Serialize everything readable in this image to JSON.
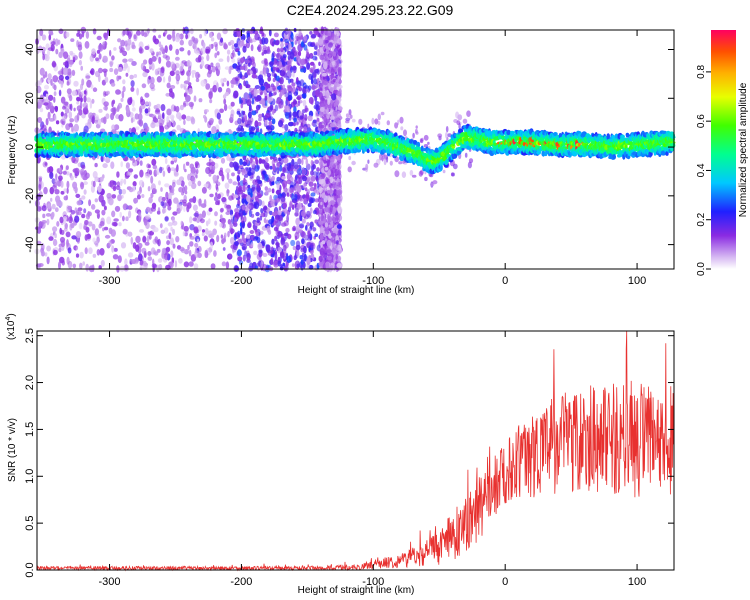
{
  "figure": {
    "title": "C2E4.2024.295.23.22.G09"
  },
  "chart_data": [
    {
      "type": "heatmap",
      "title": "C2E4.2024.295.23.22.G09",
      "xlabel": "Height of straight line (km)",
      "ylabel": "Frequency (Hz)",
      "xlim": [
        -355,
        128
      ],
      "ylim": [
        -50,
        48
      ],
      "x_ticks": [
        -300,
        -200,
        -100,
        0,
        100
      ],
      "y_ticks": [
        -40,
        -20,
        0,
        20,
        40
      ],
      "colorbar": {
        "label": "Normalized spectral amplitude",
        "range": [
          0,
          0.97
        ],
        "ticks": [
          0.0,
          0.2,
          0.4,
          0.6,
          0.8
        ],
        "colormap": "rainbow"
      },
      "signal_center": {
        "x": [
          -355,
          -140,
          -130,
          -100,
          -90,
          -80,
          -70,
          -60,
          -55,
          -50,
          -45,
          -40,
          -35,
          -30,
          -20,
          -10,
          0,
          20,
          40,
          60,
          80,
          100,
          128
        ],
        "y": [
          1,
          1,
          2,
          3,
          2,
          0,
          -2,
          -5,
          -6,
          -5,
          -3,
          0,
          2,
          4,
          3,
          2,
          2,
          2,
          1,
          1,
          0,
          1,
          2
        ]
      },
      "noise_regions": [
        {
          "x_range": [
            -355,
            -205
          ],
          "intensity": "low"
        },
        {
          "x_range": [
            -205,
            -140
          ],
          "intensity": "high"
        },
        {
          "x_range": [
            -140,
            -125
          ],
          "intensity": "low"
        }
      ],
      "grid": false
    },
    {
      "type": "line",
      "xlabel": "Height of straight line (km)",
      "ylabel": "SNR (10 * v/v)",
      "scale_label": "(x10",
      "scale_exp": "4",
      "scale_close": ")",
      "xlim": [
        -355,
        128
      ],
      "ylim": [
        0,
        2.55
      ],
      "x_ticks": [
        -300,
        -200,
        -100,
        0,
        100
      ],
      "y_ticks": [
        "0.0",
        "0.5",
        "1.0",
        "1.5",
        "2.0",
        "2.5"
      ],
      "series": [
        {
          "color": "#e8312f",
          "x": [
            -355,
            -300,
            -250,
            -200,
            -150,
            -110,
            -100,
            -90,
            -80,
            -70,
            -60,
            -50,
            -40,
            -30,
            -20,
            -10,
            0,
            10,
            20,
            30,
            40,
            50,
            60,
            70,
            80,
            90,
            100,
            110,
            120,
            128
          ],
          "mean": [
            0.02,
            0.02,
            0.02,
            0.02,
            0.02,
            0.03,
            0.06,
            0.08,
            0.1,
            0.14,
            0.18,
            0.25,
            0.35,
            0.5,
            0.65,
            0.85,
            1.05,
            1.15,
            1.22,
            1.3,
            1.35,
            1.4,
            1.45,
            1.4,
            1.4,
            1.4,
            1.4,
            1.35,
            1.3,
            1.25
          ],
          "amp": [
            0.02,
            0.02,
            0.02,
            0.02,
            0.02,
            0.03,
            0.05,
            0.06,
            0.08,
            0.1,
            0.14,
            0.2,
            0.25,
            0.32,
            0.35,
            0.32,
            0.35,
            0.4,
            0.45,
            0.5,
            0.55,
            0.6,
            0.6,
            0.58,
            0.6,
            0.62,
            0.65,
            0.62,
            0.55,
            0.5
          ]
        }
      ],
      "grid": false
    }
  ]
}
